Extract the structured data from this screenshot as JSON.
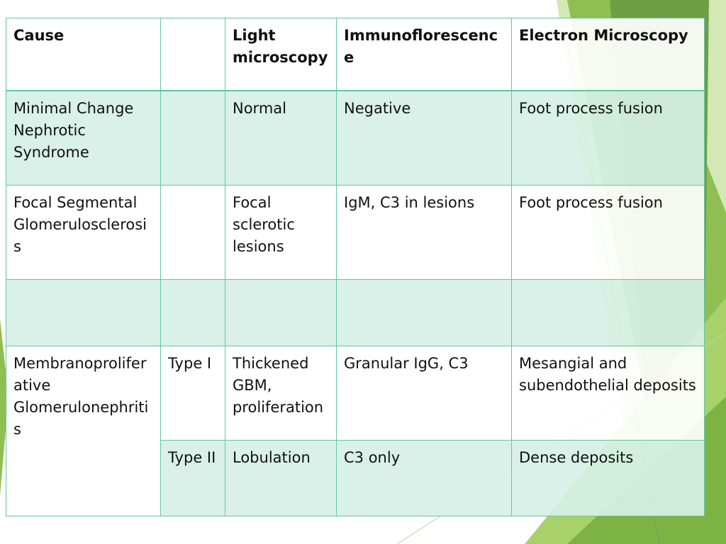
{
  "table": {
    "header": {
      "cause": "Cause",
      "light": "Light microscopy",
      "if": "Immunoflorescence",
      "em": "Electron Microscopy"
    },
    "rows": [
      {
        "cause": "Minimal Change Nephrotic Syndrome",
        "light": "Normal",
        "if": "Negative",
        "em": "Foot process fusion"
      },
      {
        "cause": "Focal Segmental Glomerulosclerosis",
        "light": "Focal sclerotic lesions",
        "if": "IgM, C3 in lesions",
        "em": "Foot process fusion"
      },
      {
        "cause": "Membranoproliferative Glomerulonephritis",
        "types": [
          {
            "type": "Type I",
            "light": "Thickened GBM, proliferation",
            "if": "Granular IgG, C3",
            "em": "Mesangial and subendothelial deposits"
          },
          {
            "type": "Type II",
            "light": "Lobulation",
            "if": "C3 only",
            "em": "Dense deposits"
          }
        ]
      }
    ]
  }
}
